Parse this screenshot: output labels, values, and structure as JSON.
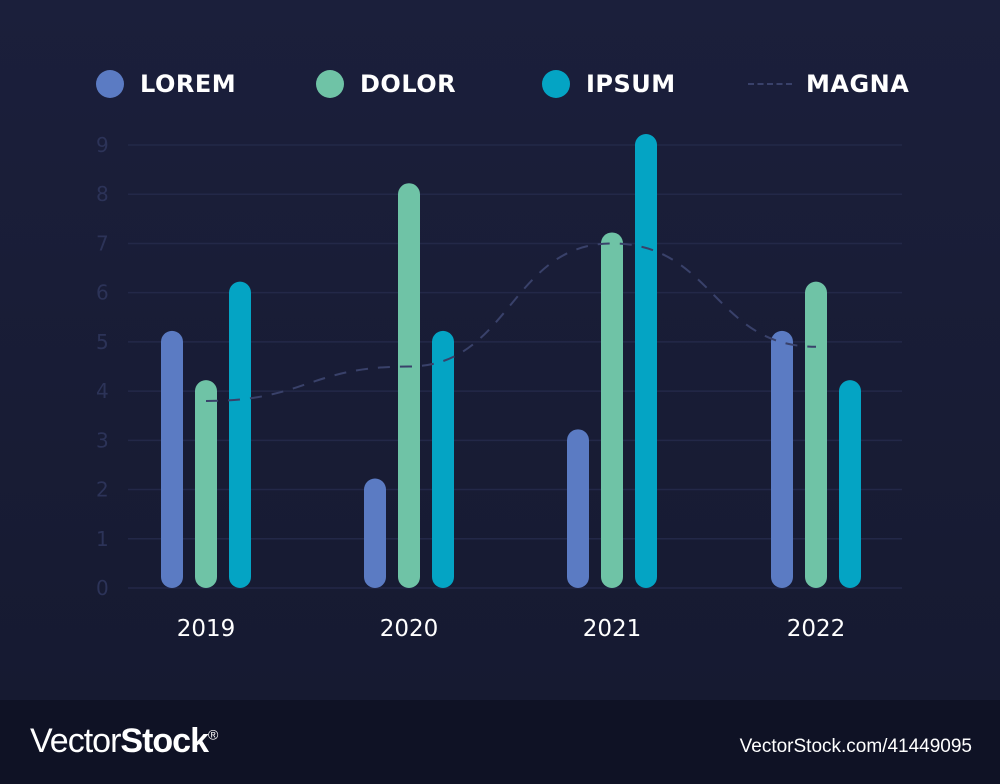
{
  "chart_data": {
    "type": "bar",
    "categories": [
      "2019",
      "2020",
      "2021",
      "2022"
    ],
    "series": [
      {
        "name": "LOREM",
        "values": [
          5,
          2,
          3,
          5
        ],
        "color": "#5b7bc3"
      },
      {
        "name": "DOLOR",
        "values": [
          4,
          8,
          7,
          6
        ],
        "color": "#6fc3a6"
      },
      {
        "name": "IPSUM",
        "values": [
          6,
          5,
          9,
          4
        ],
        "color": "#04a4c4"
      }
    ],
    "line_series": {
      "name": "MAGNA",
      "style": "dashed",
      "values": [
        3.8,
        4.5,
        7,
        4.9
      ],
      "color": "#39416a"
    },
    "y_ticks": [
      "0",
      "1",
      "2",
      "3",
      "4",
      "5",
      "6",
      "7",
      "8",
      "9"
    ],
    "ylim": [
      0,
      9
    ],
    "grid": true,
    "legend": "top"
  },
  "watermark": {
    "brand_prefix": "Vector",
    "brand_bold": "Stock",
    "reg": "®",
    "url_id": "VectorStock.com/41449095"
  }
}
